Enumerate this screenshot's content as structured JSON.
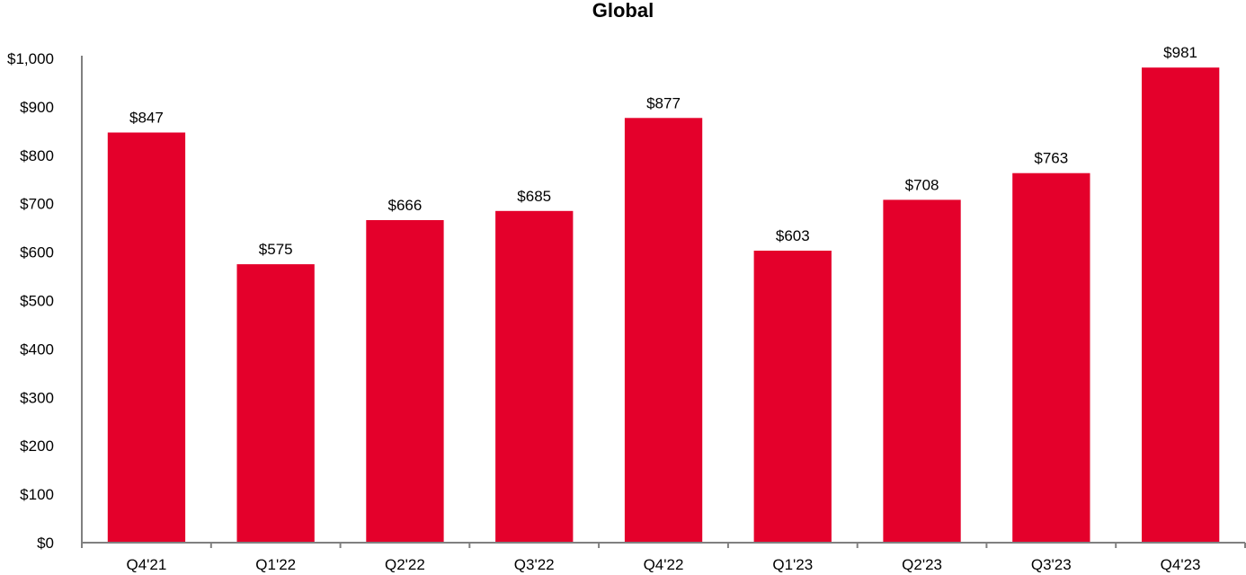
{
  "chart_data": {
    "type": "bar",
    "title": "Global",
    "xlabel": "",
    "ylabel": "",
    "categories": [
      "Q4'21",
      "Q1'22",
      "Q2'22",
      "Q3'22",
      "Q4'22",
      "Q1'23",
      "Q2'23",
      "Q3'23",
      "Q4'23"
    ],
    "values": [
      847,
      575,
      666,
      685,
      877,
      603,
      708,
      763,
      981
    ],
    "data_labels": [
      "$847",
      "$575",
      "$666",
      "$685",
      "$877",
      "$603",
      "$708",
      "$763",
      "$981"
    ],
    "ylim": [
      0,
      1000
    ],
    "yticks": [
      0,
      100,
      200,
      300,
      400,
      500,
      600,
      700,
      800,
      900,
      1000
    ],
    "ytick_labels": [
      "$0",
      "$100",
      "$200",
      "$300",
      "$400",
      "$500",
      "$600",
      "$700",
      "$800",
      "$900",
      "$1,000"
    ],
    "grid": false,
    "bar_color": "#E4002B",
    "axis_color": "#808080"
  }
}
